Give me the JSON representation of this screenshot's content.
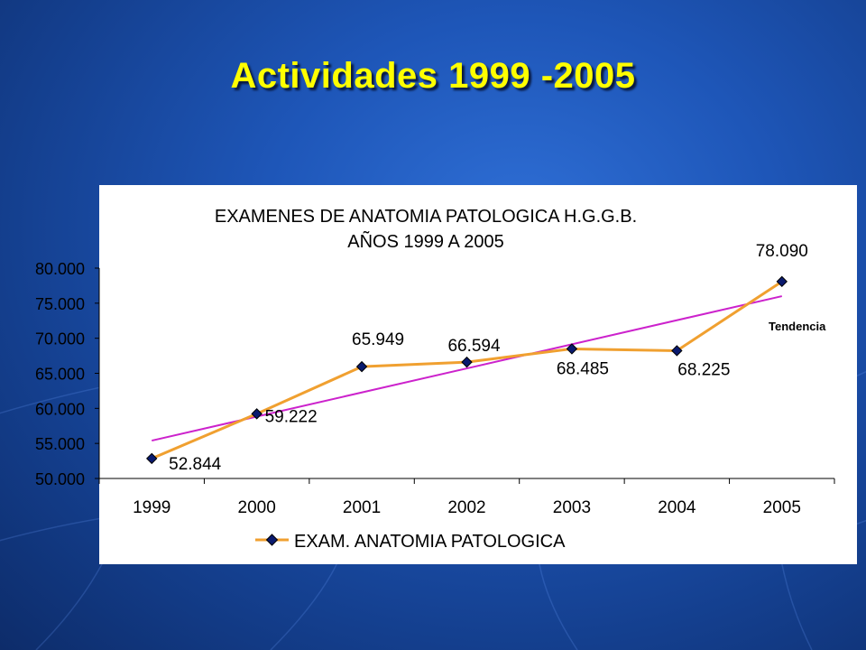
{
  "slide": {
    "title": "Actividades 1999 -2005"
  },
  "colors": {
    "series": "#f0a030",
    "marker": "#0a1a6e",
    "trend": "#cc22cc",
    "title": "#ffff00"
  },
  "chart_data": {
    "type": "line",
    "title_lines": [
      "EXAMENES DE ANATOMIA PATOLOGICA  H.G.G.B.",
      "AÑOS 1999 A 2005"
    ],
    "categories": [
      "1999",
      "2000",
      "2001",
      "2002",
      "2003",
      "2004",
      "2005"
    ],
    "series": [
      {
        "name": "EXAM. ANATOMIA PATOLOGICA",
        "values": [
          52844,
          59222,
          65949,
          66594,
          68485,
          68225,
          78090
        ]
      }
    ],
    "data_labels": [
      "52.844",
      "59.222",
      "65.949",
      "66.594",
      "68.485",
      "68.225",
      "78.090"
    ],
    "trend": {
      "label": "Tendencia",
      "start": 55400,
      "end": 76000
    },
    "y_ticks": [
      "50.000",
      "55.000",
      "60.000",
      "65.000",
      "70.000",
      "75.000",
      "80.000"
    ],
    "ylim": [
      50000,
      80000
    ],
    "grid": false,
    "legend_position": "bottom"
  }
}
